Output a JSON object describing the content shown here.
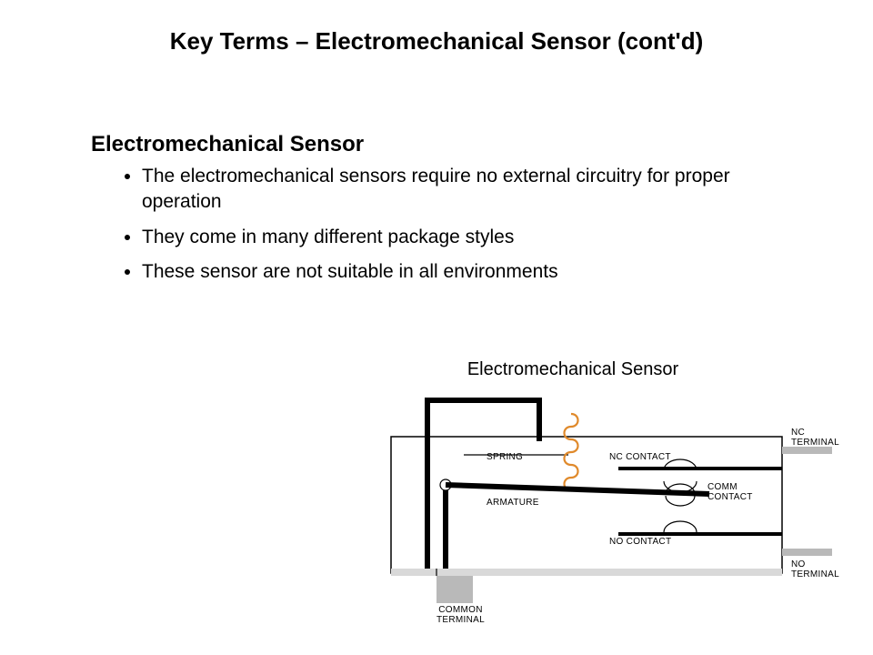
{
  "title": "Key Terms – Electromechanical Sensor (cont'd)",
  "subheading": "Electromechanical Sensor",
  "bullets": [
    "The electromechanical sensors require no external circuitry for proper operation",
    "They come in many different package styles",
    "These sensor are not suitable in all environments"
  ],
  "diagram": {
    "title": "Electromechanical Sensor",
    "labels": {
      "spring": "SPRING",
      "nc_contact": "NC CONTACT",
      "comm_contact": "COMM CONTACT",
      "no_contact": "NO CONTACT",
      "armature": "ARMATURE",
      "nc_terminal": "NC TERMINAL",
      "no_terminal": "NO TERMINAL",
      "common_terminal": "COMMON TERMINAL"
    },
    "colors": {
      "outline": "#000000",
      "spring": "#e08a2c",
      "terminal_fill": "#b9b9b9",
      "background": "#ffffff"
    },
    "stroke": {
      "outer_box": 1.5,
      "thick": 6,
      "mid": 4,
      "thin": 1.2,
      "spring": 2.2
    }
  }
}
